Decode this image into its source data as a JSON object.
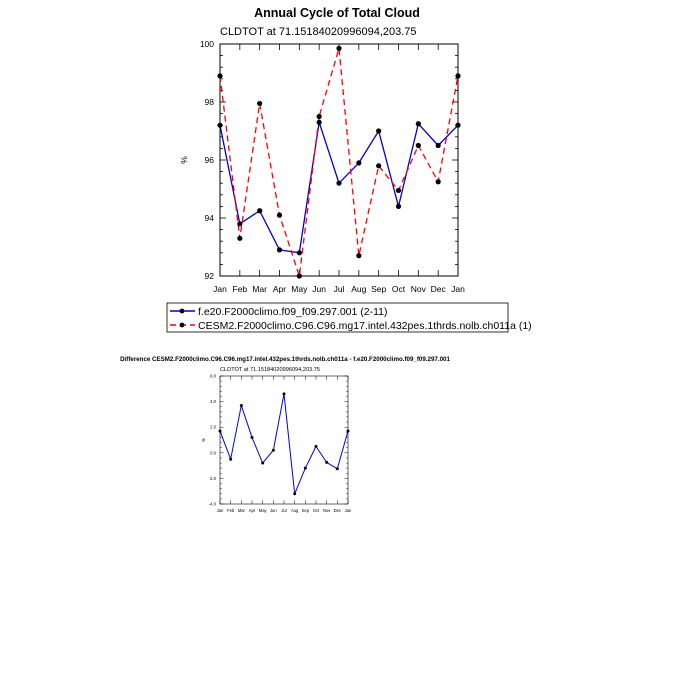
{
  "chart_data": [
    {
      "type": "line",
      "title": "Annual Cycle of Total Cloud",
      "subtitle": "CLDTOT at 71.15184020996094,203.75",
      "ylabel": "%",
      "xlabel": "",
      "categories": [
        "Jan",
        "Feb",
        "Mar",
        "Apr",
        "May",
        "Jun",
        "Jul",
        "Aug",
        "Sep",
        "Oct",
        "Nov",
        "Dec",
        "Jan"
      ],
      "ylim": [
        92,
        100
      ],
      "yticks": [
        92,
        94,
        96,
        98,
        100
      ],
      "ytick_labels": [
        "92",
        "94",
        "96",
        "98",
        "100"
      ],
      "series": [
        {
          "name": "f.e20.F2000climo.f09_f09.297.001 (2-11)",
          "color": "#0000dd",
          "style": "solid",
          "values": [
            97.2,
            93.8,
            94.25,
            92.9,
            92.8,
            97.3,
            95.2,
            95.9,
            97.0,
            94.4,
            97.25,
            96.5,
            97.2
          ]
        },
        {
          "name": "CESM2.F2000climo.C96.C96.mg17.intel.432pes.1thrds.nolb.ch011a (1)",
          "color": "#ff0000",
          "style": "dashed",
          "values": [
            98.9,
            93.3,
            97.95,
            94.1,
            92.0,
            97.5,
            99.85,
            92.7,
            95.8,
            94.95,
            96.5,
            95.25,
            98.9
          ]
        }
      ],
      "legend": "below"
    },
    {
      "type": "line",
      "title": "Difference CESM2.F2000climo.C96.C96.mg17.intel.432pes.1thrds.nolb.ch011a - f.e20.F2000climo.f09_f09.297.001",
      "subtitle": "CLDTOT at 71.15184020996094,203.75",
      "ylabel": "%",
      "xlabel": "",
      "categories": [
        "Jan",
        "Feb",
        "Mar",
        "Apr",
        "May",
        "Jun",
        "Jul",
        "Aug",
        "Sep",
        "Oct",
        "Nov",
        "Dec",
        "Jan"
      ],
      "ylim": [
        -4,
        6
      ],
      "yticks": [
        -4,
        -2,
        0,
        2,
        4,
        6
      ],
      "ytick_labels": [
        "-4.0",
        "-2.0",
        "0.0",
        "2.0",
        "4.0",
        "6.0"
      ],
      "series": [
        {
          "name": "",
          "color": "#0000dd",
          "style": "solid",
          "values": [
            1.7,
            -0.5,
            3.7,
            1.2,
            -0.8,
            0.2,
            4.6,
            -3.2,
            -1.2,
            0.5,
            -0.75,
            -1.25,
            1.7
          ]
        }
      ]
    }
  ]
}
